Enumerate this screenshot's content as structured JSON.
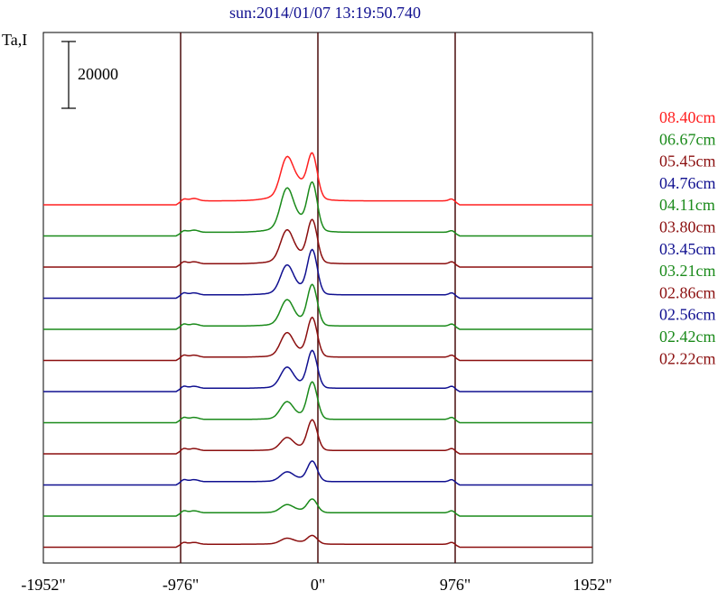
{
  "title": "sun:2014/01/07 13:19:50.740",
  "y_axis_label": "Ta,I",
  "scale_bar_label": "20000",
  "colors": {
    "red": "#ff2020",
    "green": "#1a8a1a",
    "maroon": "#8b0f0f",
    "blue": "#101090",
    "axis": "#000000",
    "marker_line": "#4a0d0d"
  },
  "chart_data": {
    "type": "line",
    "title": "sun:2014/01/07 13:19:50.740",
    "xlabel": "",
    "ylabel": "Ta,I",
    "x_ticks": [
      "-1952\"",
      "-976\"",
      "0\"",
      "976\"",
      "1952\""
    ],
    "x_tick_values": [
      -1952,
      -976,
      0,
      976,
      1952
    ],
    "xlim": [
      -1952,
      1952
    ],
    "vertical_markers": [
      -976,
      0,
      976
    ],
    "scale_bar_value": 20000,
    "legend_position": "right",
    "grid": false,
    "series": [
      {
        "name": "08.40cm",
        "color": "red",
        "base": 0,
        "disk": 1200,
        "limb_peak": 2200,
        "core_peaks": [
          12500,
          13000
        ],
        "core_dip": 9000,
        "shoulder": 4500
      },
      {
        "name": "06.67cm",
        "color": "green",
        "base": 0,
        "disk": 1100,
        "limb_peak": 2000,
        "core_peaks": [
          13000,
          14000
        ],
        "core_dip": 6000,
        "shoulder": 3800
      },
      {
        "name": "05.45cm",
        "color": "maroon",
        "base": 0,
        "disk": 1000,
        "limb_peak": 2000,
        "core_peaks": [
          10000,
          12500
        ],
        "core_dip": 4000,
        "shoulder": 3000
      },
      {
        "name": "04.76cm",
        "color": "blue",
        "base": 0,
        "disk": 1000,
        "limb_peak": 2000,
        "core_peaks": [
          9000,
          13000
        ],
        "core_dip": 3000,
        "shoulder": 2500
      },
      {
        "name": "04.11cm",
        "color": "green",
        "base": 0,
        "disk": 1000,
        "limb_peak": 2000,
        "core_peaks": [
          8000,
          12000
        ],
        "core_dip": 2500,
        "shoulder": 2200
      },
      {
        "name": "03.80cm",
        "color": "maroon",
        "base": 0,
        "disk": 1000,
        "limb_peak": 2000,
        "core_peaks": [
          7500,
          11500
        ],
        "core_dip": 2500,
        "shoulder": 2000
      },
      {
        "name": "03.45cm",
        "color": "blue",
        "base": 0,
        "disk": 1000,
        "limb_peak": 2000,
        "core_peaks": [
          6500,
          11000
        ],
        "core_dip": 2000,
        "shoulder": 1800
      },
      {
        "name": "03.21cm",
        "color": "green",
        "base": 0,
        "disk": 1000,
        "limb_peak": 2000,
        "core_peaks": [
          5500,
          11000
        ],
        "core_dip": 1800,
        "shoulder": 1600
      },
      {
        "name": "02.86cm",
        "color": "maroon",
        "base": 0,
        "disk": 1000,
        "limb_peak": 2000,
        "core_peaks": [
          4000,
          9000
        ],
        "core_dip": 1500,
        "shoulder": 1500
      },
      {
        "name": "02.56cm",
        "color": "blue",
        "base": 0,
        "disk": 1000,
        "limb_peak": 2000,
        "core_peaks": [
          3000,
          6000
        ],
        "core_dip": 1500,
        "shoulder": 1400
      },
      {
        "name": "02.42cm",
        "color": "green",
        "base": 0,
        "disk": 1000,
        "limb_peak": 2000,
        "core_peaks": [
          2500,
          4000
        ],
        "core_dip": 1400,
        "shoulder": 1300
      },
      {
        "name": "02.22cm",
        "color": "maroon",
        "base": 0,
        "disk": 900,
        "limb_peak": 1800,
        "core_peaks": [
          1800,
          2500
        ],
        "core_dip": 1200,
        "shoulder": 1200
      }
    ]
  }
}
